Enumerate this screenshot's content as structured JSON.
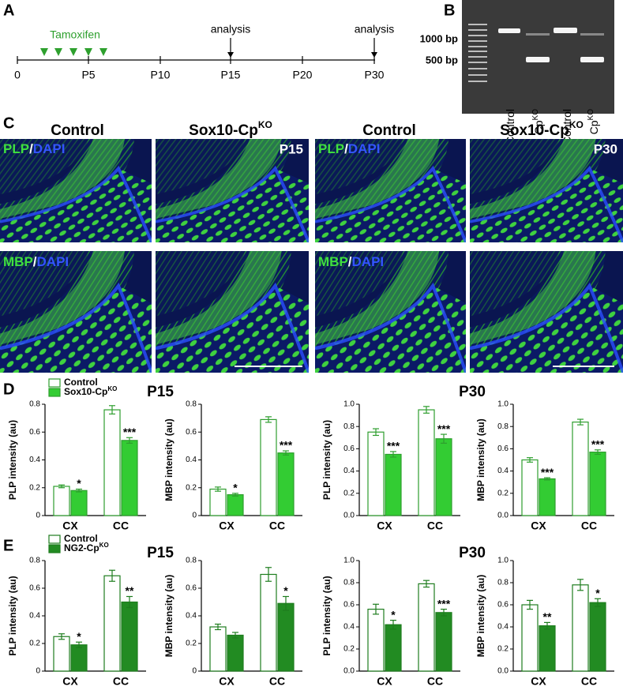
{
  "panel_labels": [
    "A",
    "B",
    "C",
    "D",
    "E"
  ],
  "timeline": {
    "treatment": "Tamoxifen",
    "ticks": [
      "0",
      "P5",
      "P10",
      "P15",
      "P20",
      "P30"
    ],
    "events": [
      "analysis",
      "analysis"
    ]
  },
  "gel": {
    "markers": [
      "1000 bp",
      "500 bp"
    ],
    "lanes": [
      {
        "text": "Control"
      },
      {
        "text": "Cp",
        "sup": "KO"
      },
      {
        "text": "Control"
      },
      {
        "text": "Cp",
        "sup": "KO"
      }
    ]
  },
  "images": {
    "headers": [
      {
        "text": "Control"
      },
      {
        "text": "Sox10-Cp",
        "sup": "KO"
      },
      {
        "text": "Control"
      },
      {
        "text": "Sox10-Cp",
        "sup": "KO"
      }
    ],
    "stains": [
      [
        "PLP",
        "/",
        "DAPI"
      ],
      [
        "MBP",
        "/",
        "DAPI"
      ],
      [
        "PLP",
        "/",
        "DAPI"
      ],
      [
        "MBP",
        "/",
        "DAPI"
      ]
    ],
    "ages": [
      "P15",
      "P30"
    ]
  },
  "row_titles": [
    [
      "P15",
      "P30"
    ],
    [
      "P15",
      "P30"
    ]
  ],
  "chart_data": [
    {
      "type": "bar",
      "ylabel": "PLP intensity (au)",
      "categories": [
        "CX",
        "CC"
      ],
      "ylim": [
        0,
        0.8
      ],
      "yticks": [
        0,
        0.2,
        0.4,
        0.6,
        0.8
      ],
      "legend": "upper left",
      "series": [
        {
          "name": "Control",
          "color": "#ffffff",
          "edgecolor": "#2e9e2e",
          "values": [
            0.21,
            0.76
          ],
          "errors": [
            0.01,
            0.03
          ]
        },
        {
          "name": "Sox10-Cp",
          "name_sup": "KO",
          "color": "#33cc33",
          "edgecolor": "#2e9e2e",
          "values": [
            0.18,
            0.54
          ],
          "errors": [
            0.01,
            0.02
          ],
          "stars": [
            "*",
            "***"
          ]
        }
      ]
    },
    {
      "type": "bar",
      "ylabel": "MBP intensity (au)",
      "categories": [
        "CX",
        "CC"
      ],
      "ylim": [
        0,
        0.8
      ],
      "yticks": [
        0,
        0.2,
        0.4,
        0.6,
        0.8
      ],
      "series": [
        {
          "color": "#ffffff",
          "edgecolor": "#2e9e2e",
          "values": [
            0.19,
            0.69
          ],
          "errors": [
            0.015,
            0.02
          ]
        },
        {
          "color": "#33cc33",
          "edgecolor": "#2e9e2e",
          "values": [
            0.15,
            0.45
          ],
          "errors": [
            0.01,
            0.015
          ],
          "stars": [
            "*",
            "***"
          ]
        }
      ]
    },
    {
      "type": "bar",
      "ylabel": "PLP intensity (au)",
      "categories": [
        "CX",
        "CC"
      ],
      "ylim": [
        0,
        1.0
      ],
      "yticks": [
        {
          "value": 0,
          "label": "0.0"
        },
        0.2,
        0.4,
        0.6,
        0.8,
        {
          "value": 1,
          "label": "1.0"
        }
      ],
      "series": [
        {
          "color": "#ffffff",
          "edgecolor": "#2e9e2e",
          "values": [
            0.75,
            0.95
          ],
          "errors": [
            0.03,
            0.03
          ]
        },
        {
          "color": "#33cc33",
          "edgecolor": "#2e9e2e",
          "values": [
            0.55,
            0.69
          ],
          "errors": [
            0.025,
            0.04
          ],
          "stars": [
            "***",
            "***"
          ]
        }
      ]
    },
    {
      "type": "bar",
      "ylabel": "MBP intensity (au)",
      "categories": [
        "CX",
        "CC"
      ],
      "ylim": [
        0,
        1.0
      ],
      "yticks": [
        {
          "value": 0,
          "label": "0.0"
        },
        0.2,
        0.4,
        0.6,
        0.8,
        {
          "value": 1,
          "label": "1.0"
        }
      ],
      "series": [
        {
          "color": "#ffffff",
          "edgecolor": "#2e9e2e",
          "values": [
            0.5,
            0.84
          ],
          "errors": [
            0.02,
            0.025
          ]
        },
        {
          "color": "#33cc33",
          "edgecolor": "#2e9e2e",
          "values": [
            0.33,
            0.57
          ],
          "errors": [
            0.01,
            0.02
          ],
          "stars": [
            "***",
            "***"
          ]
        }
      ]
    },
    {
      "type": "bar",
      "ylabel": "PLP intensity (au)",
      "categories": [
        "CX",
        "CC"
      ],
      "ylim": [
        0,
        0.8
      ],
      "yticks": [
        0,
        0.2,
        0.4,
        0.6,
        0.8
      ],
      "legend": "upper left",
      "series": [
        {
          "name": "Control",
          "color": "#ffffff",
          "edgecolor": "#1e7d1e",
          "values": [
            0.25,
            0.69
          ],
          "errors": [
            0.02,
            0.04
          ]
        },
        {
          "name": "NG2-Cp",
          "name_sup": "KO",
          "color": "#228b22",
          "edgecolor": "#1e7d1e",
          "values": [
            0.19,
            0.5
          ],
          "errors": [
            0.02,
            0.04
          ],
          "stars": [
            "*",
            "**"
          ]
        }
      ]
    },
    {
      "type": "bar",
      "ylabel": "MBP intensity (au)",
      "categories": [
        "CX",
        "CC"
      ],
      "ylim": [
        0,
        0.8
      ],
      "yticks": [
        0,
        0.2,
        0.4,
        0.6,
        0.8
      ],
      "series": [
        {
          "color": "#ffffff",
          "edgecolor": "#1e7d1e",
          "values": [
            0.32,
            0.7
          ],
          "errors": [
            0.02,
            0.05
          ]
        },
        {
          "color": "#228b22",
          "edgecolor": "#1e7d1e",
          "values": [
            0.26,
            0.49
          ],
          "errors": [
            0.02,
            0.05
          ],
          "stars": [
            null,
            "*"
          ]
        }
      ]
    },
    {
      "type": "bar",
      "ylabel": "PLP intensity (au)",
      "categories": [
        "CX",
        "CC"
      ],
      "ylim": [
        0,
        1.0
      ],
      "yticks": [
        {
          "value": 0,
          "label": "0.0"
        },
        0.2,
        0.4,
        0.6,
        0.8,
        {
          "value": 1,
          "label": "1.0"
        }
      ],
      "series": [
        {
          "color": "#ffffff",
          "edgecolor": "#1e7d1e",
          "values": [
            0.56,
            0.79
          ],
          "errors": [
            0.045,
            0.03
          ]
        },
        {
          "color": "#228b22",
          "edgecolor": "#1e7d1e",
          "values": [
            0.42,
            0.53
          ],
          "errors": [
            0.04,
            0.03
          ],
          "stars": [
            "*",
            "***"
          ]
        }
      ]
    },
    {
      "type": "bar",
      "ylabel": "MBP intensity (au)",
      "categories": [
        "CX",
        "CC"
      ],
      "ylim": [
        0,
        1.0
      ],
      "yticks": [
        {
          "value": 0,
          "label": "0.0"
        },
        0.2,
        0.4,
        0.6,
        0.8,
        {
          "value": 1,
          "label": "1.0"
        }
      ],
      "series": [
        {
          "color": "#ffffff",
          "edgecolor": "#1e7d1e",
          "values": [
            0.6,
            0.78
          ],
          "errors": [
            0.04,
            0.05
          ]
        },
        {
          "color": "#228b22",
          "edgecolor": "#1e7d1e",
          "values": [
            0.41,
            0.62
          ],
          "errors": [
            0.03,
            0.035
          ],
          "stars": [
            "**",
            "*"
          ]
        }
      ]
    }
  ]
}
